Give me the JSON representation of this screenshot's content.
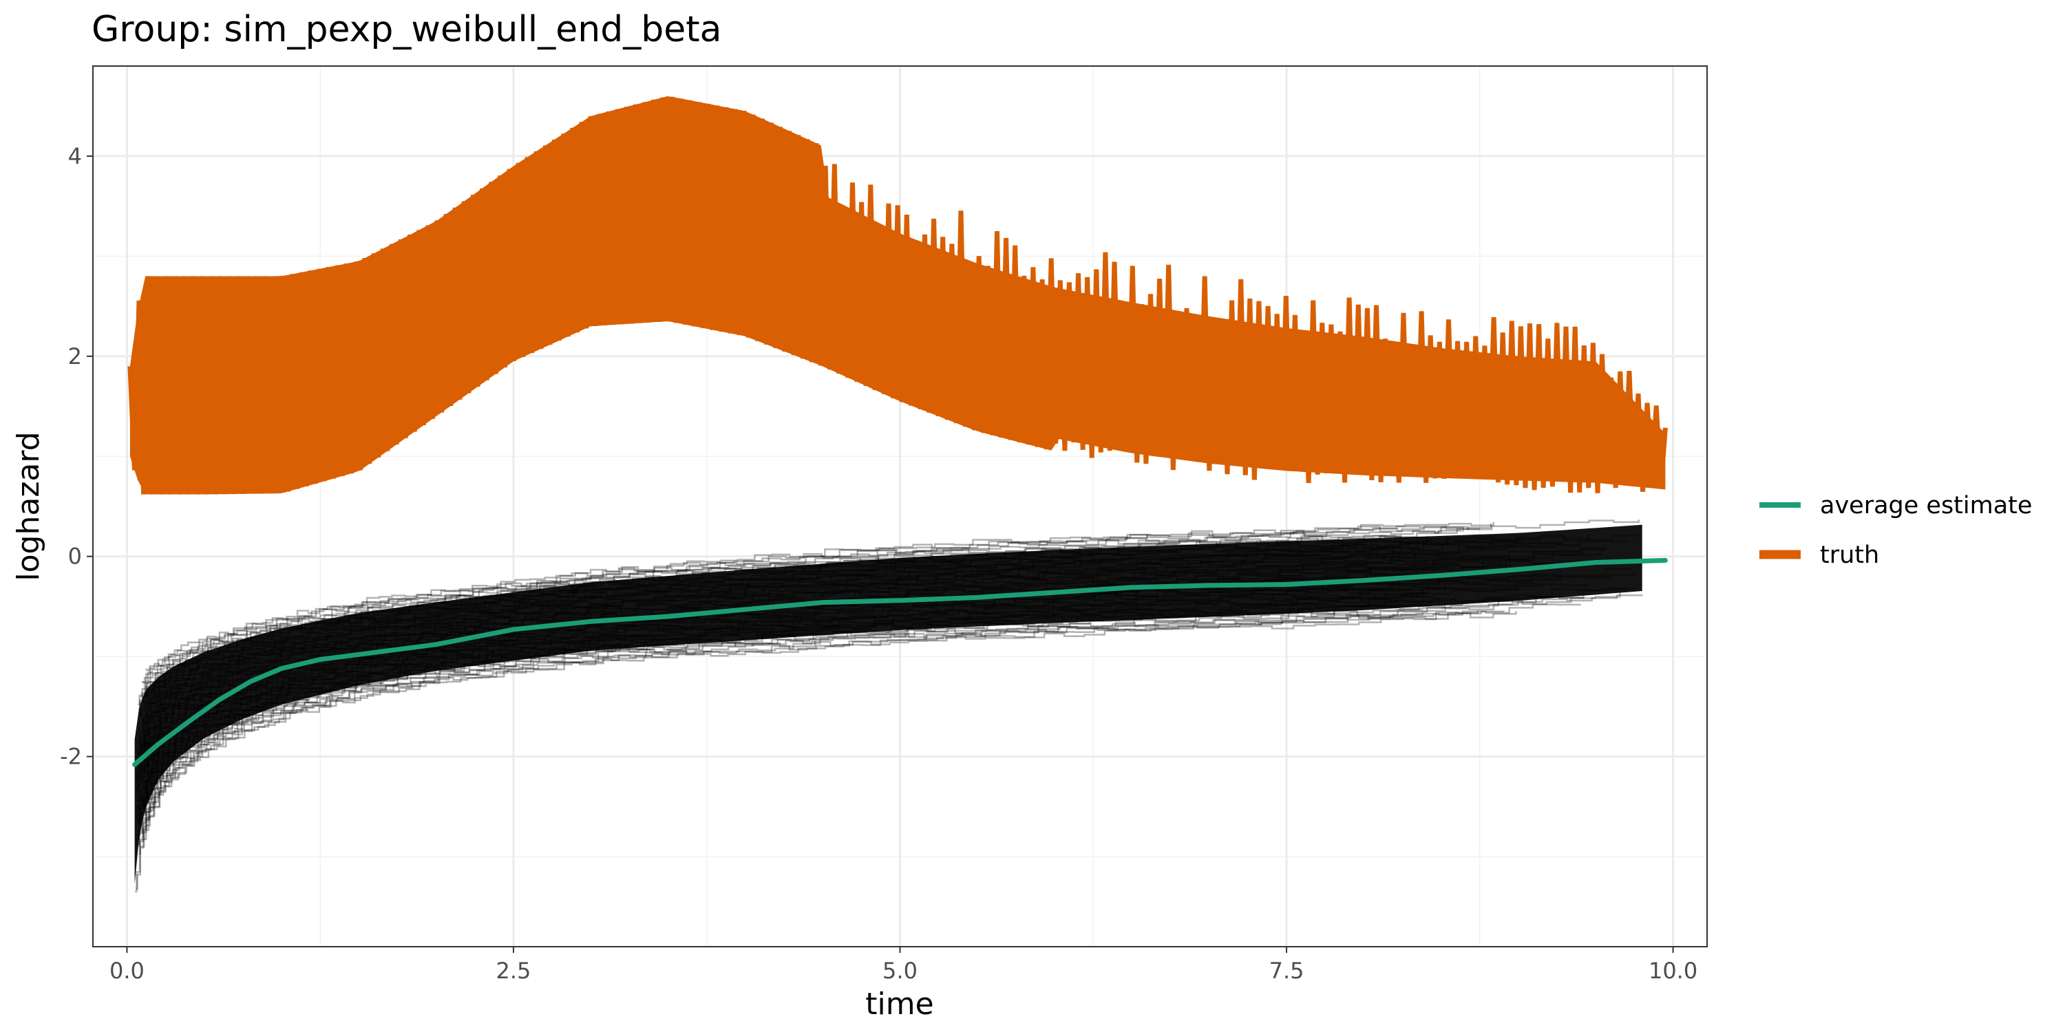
{
  "chart_data": {
    "type": "line",
    "title": "Group: sim_pexp_weibull_end_beta",
    "xlabel": "time",
    "ylabel": "loghazard",
    "xlim": [
      -0.22,
      10.22
    ],
    "ylim": [
      -3.9,
      4.9
    ],
    "x_ticks": [
      0.0,
      2.5,
      5.0,
      7.5,
      10.0
    ],
    "x_tick_labels": [
      "0.0",
      "2.5",
      "5.0",
      "7.5",
      "10.0"
    ],
    "y_ticks": [
      -2,
      0,
      2,
      4
    ],
    "y_tick_labels": [
      "-2",
      "0",
      "2",
      "4"
    ],
    "grid": true,
    "legend_position": "right",
    "legend": [
      {
        "label": "average estimate",
        "color": "#1b9e77"
      },
      {
        "label": "truth",
        "color": "#d95f02"
      }
    ],
    "series": [
      {
        "name": "average estimate",
        "color": "#1b9e77",
        "x": [
          0.05,
          0.2,
          0.4,
          0.6,
          0.8,
          1.0,
          1.25,
          1.5,
          2.0,
          2.5,
          3.0,
          3.5,
          4.0,
          4.5,
          5.0,
          5.5,
          6.0,
          6.5,
          7.0,
          7.5,
          8.0,
          8.5,
          9.0,
          9.5,
          9.95
        ],
        "y": [
          -2.08,
          -1.88,
          -1.65,
          -1.43,
          -1.25,
          -1.12,
          -1.03,
          -0.98,
          -0.88,
          -0.73,
          -0.65,
          -0.6,
          -0.53,
          -0.46,
          -0.44,
          -0.41,
          -0.36,
          -0.31,
          -0.29,
          -0.28,
          -0.24,
          -0.19,
          -0.13,
          -0.06,
          -0.04
        ]
      },
      {
        "name": "truth",
        "color": "#d95f02",
        "band_x": [
          0.02,
          0.1,
          0.5,
          1.0,
          1.5,
          2.0,
          2.5,
          3.0,
          3.5,
          4.0,
          4.5,
          5.0,
          5.5,
          6.0,
          6.5,
          7.0,
          7.5,
          8.0,
          8.5,
          9.0,
          9.5,
          9.95
        ],
        "band_lower": [
          1.0,
          0.62,
          0.62,
          0.63,
          0.85,
          1.4,
          1.95,
          2.3,
          2.35,
          2.2,
          1.9,
          1.55,
          1.25,
          1.05,
          0.9,
          0.8,
          0.73,
          0.69,
          0.67,
          0.65,
          0.63,
          0.62
        ],
        "band_upper": [
          1.9,
          2.8,
          2.8,
          2.8,
          2.95,
          3.35,
          3.9,
          4.4,
          4.6,
          4.45,
          4.1,
          3.7,
          3.4,
          3.15,
          3.0,
          2.85,
          2.72,
          2.62,
          2.48,
          2.38,
          2.32,
          1.4
        ]
      },
      {
        "name": "estimates",
        "color": "#000000",
        "band_x": [
          0.05,
          0.08,
          0.12,
          0.2,
          0.3,
          0.5,
          0.75,
          1.0,
          1.5,
          2.0,
          2.5,
          3.0,
          4.0,
          5.0,
          6.0,
          7.0,
          8.0,
          9.0,
          9.8
        ],
        "band_lower": [
          -3.5,
          -3.0,
          -2.7,
          -2.4,
          -2.2,
          -1.95,
          -1.75,
          -1.6,
          -1.4,
          -1.25,
          -1.15,
          -1.05,
          -0.95,
          -0.85,
          -0.78,
          -0.72,
          -0.65,
          -0.55,
          -0.45
        ],
        "band_upper": [
          -1.6,
          -1.3,
          -1.15,
          -1.05,
          -0.95,
          -0.82,
          -0.7,
          -0.6,
          -0.45,
          -0.35,
          -0.25,
          -0.15,
          -0.02,
          0.1,
          0.18,
          0.24,
          0.29,
          0.34,
          0.42
        ]
      }
    ]
  }
}
